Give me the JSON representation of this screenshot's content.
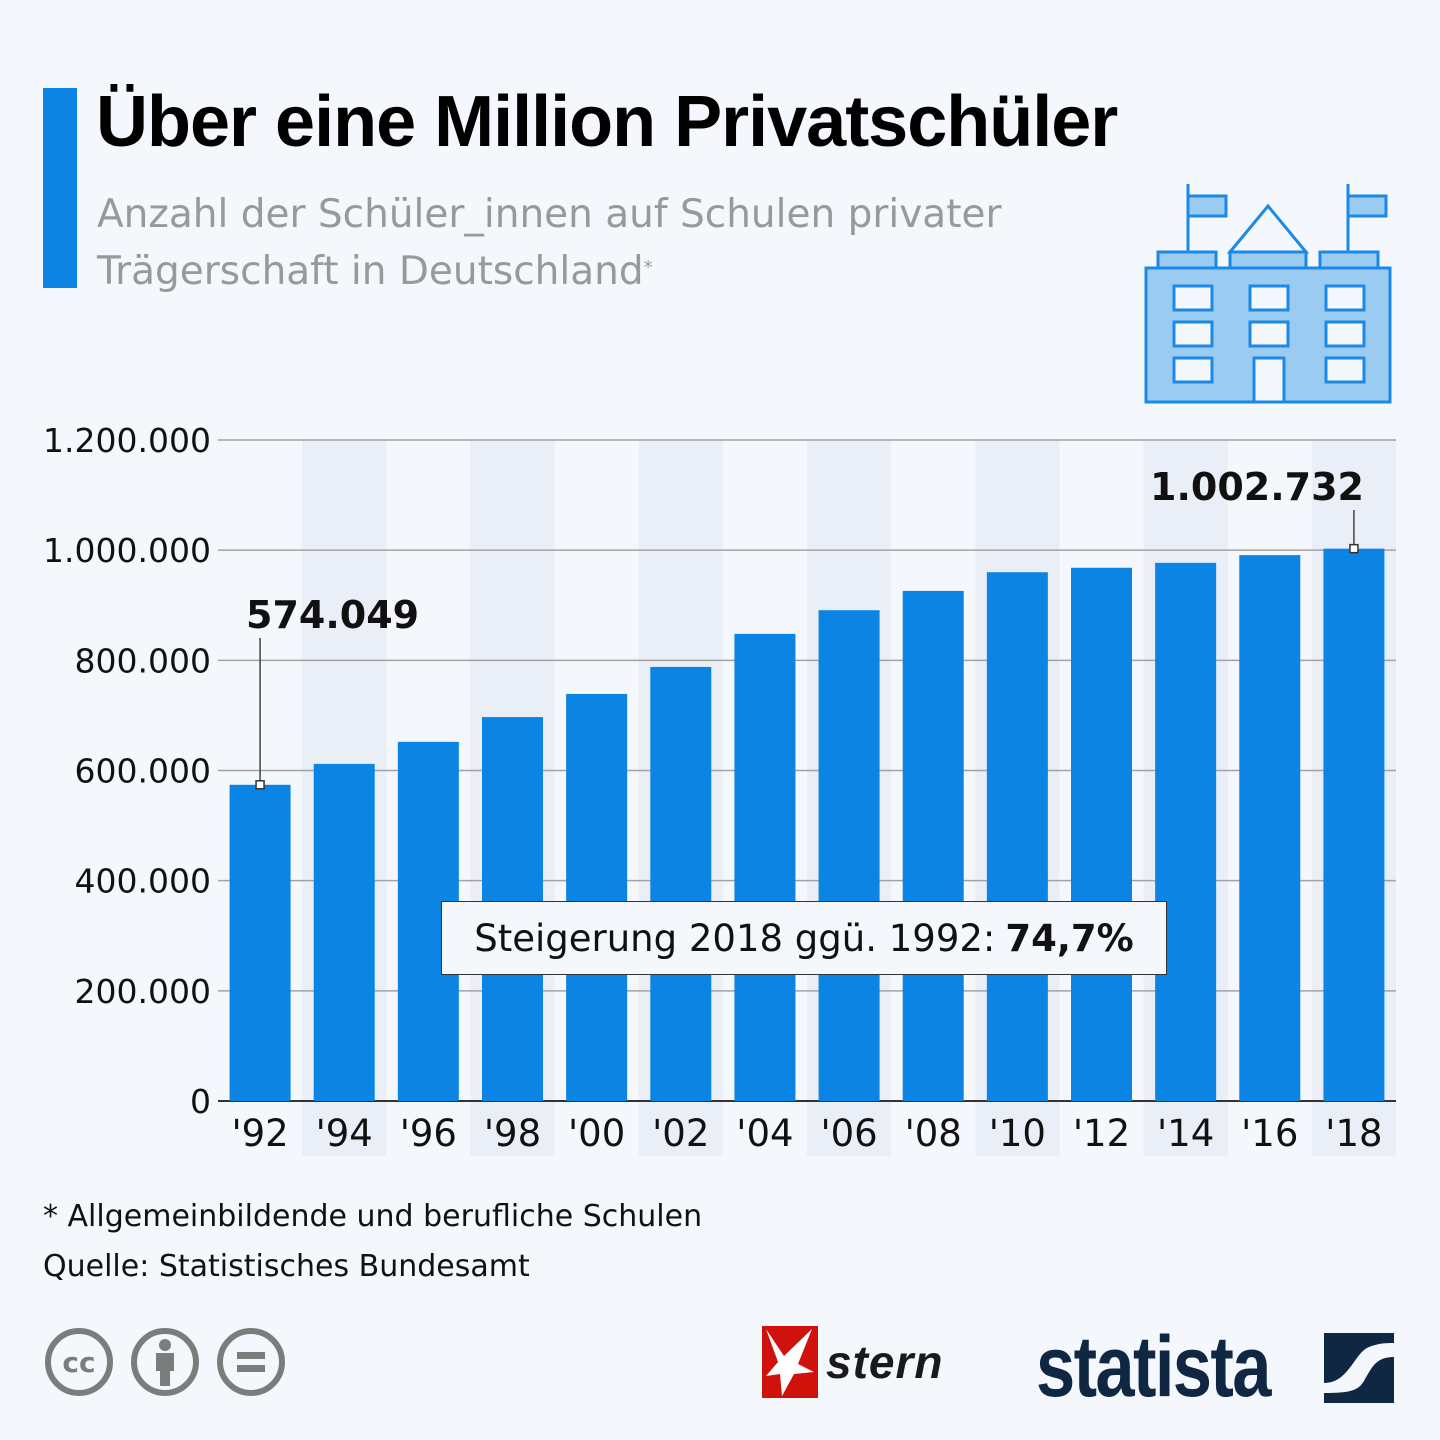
{
  "header": {
    "title": "Über eine Million Privatschüler",
    "subtitle": "Anzahl der Schüler_innen auf Schulen privater Trägerschaft in Deutschland",
    "subtitle_marker": "*"
  },
  "colors": {
    "accent": "#0b84e4",
    "bar": "#0b84e4",
    "band": "#eaeff7",
    "background": "#f4f7fb",
    "grid": "#a3a3a3",
    "icon_fill": "#9ccbf2",
    "icon_stroke": "#1a8ae6",
    "stern_red": "#d0120c",
    "statista_navy": "#0f2742"
  },
  "icons": {
    "header_illustration": "school-building-icon",
    "license": [
      "creative-commons-icon",
      "attribution-icon",
      "no-derivatives-icon"
    ],
    "brand_stern": "stern-star-icon",
    "brand_statista": "statista-mark-icon"
  },
  "chart_data": {
    "type": "bar",
    "title": "Über eine Million Privatschüler",
    "subtitle": "Anzahl der Schüler_innen auf Schulen privater Trägerschaft in Deutschland*",
    "xlabel": "",
    "ylabel": "",
    "categories": [
      "'92",
      "'94",
      "'96",
      "'98",
      "'00",
      "'02",
      "'04",
      "'06",
      "'08",
      "'10",
      "'12",
      "'14",
      "'16",
      "'18"
    ],
    "values": [
      574049,
      612000,
      652000,
      697000,
      739000,
      788000,
      848000,
      891000,
      926000,
      960000,
      968000,
      977000,
      991000,
      1002732
    ],
    "ylim": [
      0,
      1200000
    ],
    "yticks": [
      0,
      200000,
      400000,
      600000,
      800000,
      1000000,
      1200000
    ],
    "ytick_labels": [
      "0",
      "200.000",
      "400.000",
      "600.000",
      "800.000",
      "1.000.000",
      "1.200.000"
    ],
    "grid": true,
    "alternating_bands": true,
    "legend": "none",
    "annotations": [
      {
        "category": "'92",
        "label": "574.049"
      },
      {
        "category": "'18",
        "label": "1.002.732"
      }
    ],
    "note": {
      "text": "Steigerung 2018 ggü. 1992:",
      "value": "74,7%"
    }
  },
  "footer": {
    "footnote": "* Allgemeinbildende und berufliche Schulen",
    "source": "Quelle: Statistisches Bundesamt",
    "stern_label": "stern",
    "statista_label": "statista"
  }
}
